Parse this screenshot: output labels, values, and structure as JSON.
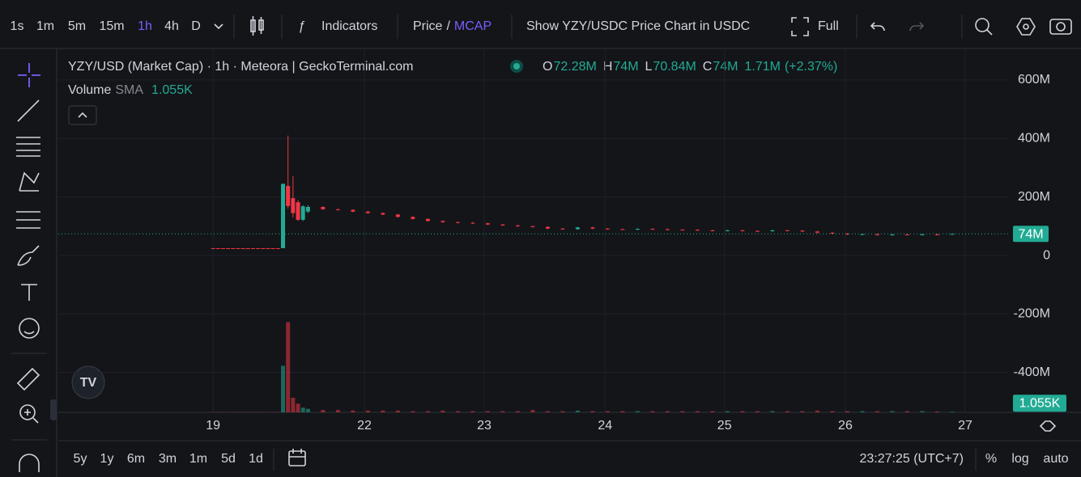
{
  "toolbar": {
    "intervals": [
      "1s",
      "1m",
      "5m",
      "15m",
      "1h",
      "4h",
      "D"
    ],
    "active_interval": 4,
    "indicators": "Indicators",
    "price": "Price",
    "slash": "/",
    "mcap": "MCAP",
    "usdc": "Show YZY/USDC Price Chart in USDC",
    "full": "Full"
  },
  "legend": {
    "title": "YZY/USD (Market Cap) · 1h · Meteora | GeckoTerminal.com",
    "ohlc": [
      {
        "key": "O",
        "value": "72.28M"
      },
      {
        "key": "H",
        "value": "74M"
      },
      {
        "key": "L",
        "value": "70.84M"
      },
      {
        "key": "C",
        "value": "74M"
      }
    ],
    "change": "1.71M",
    "change_pct": "(+2.37%)"
  },
  "volume_legend": {
    "label": "Volume",
    "sma": "SMA",
    "value": "1.055K"
  },
  "chart_data": {
    "type": "candlestick",
    "up_color": "#22ab94",
    "down_color": "#f23645",
    "grid": true,
    "xlim": [
      -31,
      159.2
    ],
    "xticks": [
      {
        "value": 0,
        "label": "19"
      },
      {
        "value": 30.3,
        "label": "22"
      },
      {
        "value": 54.3,
        "label": "23"
      },
      {
        "value": 78.5,
        "label": "24"
      },
      {
        "value": 102.4,
        "label": "25"
      },
      {
        "value": 126.6,
        "label": "26"
      },
      {
        "value": 150.6,
        "label": "27"
      }
    ],
    "ylim": [
      -536,
      702
    ],
    "yticks": [
      {
        "value": 600,
        "label": "600M"
      },
      {
        "value": 400,
        "label": "400M"
      },
      {
        "value": 200,
        "label": "200M"
      },
      0,
      {
        "value": -200,
        "label": "-200M"
      },
      {
        "value": -400,
        "label": "-400M"
      }
    ],
    "vlim": [
      0,
      250
    ],
    "x": [
      0,
      1,
      2,
      3,
      4,
      5,
      6,
      7,
      8,
      9,
      10,
      11,
      12,
      13,
      14,
      15,
      16,
      17,
      18,
      19,
      22,
      25,
      28,
      31,
      34,
      37,
      40,
      43,
      46,
      49,
      52,
      55,
      58,
      61,
      64,
      67,
      70,
      73,
      76,
      79,
      82,
      85,
      88,
      91,
      94,
      97,
      100,
      103,
      106,
      109,
      112,
      115,
      118,
      121,
      124,
      127,
      130,
      133,
      136,
      139,
      142,
      145,
      148
    ],
    "open": [
      25,
      25,
      25,
      25,
      25,
      25,
      25,
      25,
      25,
      25,
      25,
      25,
      25,
      25,
      25,
      238,
      196,
      182,
      122,
      150,
      166,
      158,
      156,
      150,
      145,
      140,
      132,
      125,
      118,
      114,
      112,
      110,
      106,
      103,
      100,
      98,
      92,
      90,
      96,
      92,
      90,
      89,
      91,
      90,
      88,
      88,
      86,
      85,
      86,
      84,
      83,
      86,
      85,
      82,
      78,
      75,
      72,
      73,
      70,
      72,
      71,
      72,
      72.28
    ],
    "high": [
      25,
      25,
      25,
      25,
      25,
      25,
      25,
      25,
      25,
      25,
      25,
      25,
      25,
      25,
      245,
      410,
      271,
      190,
      172,
      172,
      168,
      160,
      158,
      152,
      147,
      142,
      134,
      127,
      120,
      116,
      114,
      112,
      108,
      105,
      102,
      100,
      94,
      98,
      98,
      94,
      92,
      93,
      93,
      92,
      90,
      90,
      88,
      88,
      88,
      86,
      88,
      88,
      87,
      84,
      80,
      77,
      75,
      75,
      74,
      74,
      74,
      74,
      74
    ],
    "low": [
      25,
      25,
      25,
      25,
      25,
      25,
      25,
      25,
      25,
      25,
      25,
      25,
      25,
      25,
      25,
      160,
      130,
      118,
      118,
      145,
      156,
      154,
      148,
      143,
      138,
      130,
      123,
      116,
      112,
      110,
      108,
      104,
      101,
      98,
      96,
      90,
      88,
      88,
      90,
      88,
      87,
      87,
      88,
      86,
      86,
      84,
      83,
      83,
      82,
      81,
      81,
      83,
      80,
      76,
      73,
      70,
      70,
      68,
      68,
      69,
      69,
      69,
      70.84
    ],
    "close": [
      25,
      25,
      25,
      25,
      25,
      25,
      25,
      25,
      25,
      25,
      25,
      25,
      25,
      25,
      245,
      169,
      145,
      122,
      168,
      166,
      158,
      156,
      150,
      145,
      140,
      132,
      125,
      118,
      114,
      112,
      110,
      106,
      103,
      100,
      98,
      92,
      90,
      96,
      92,
      90,
      89,
      91,
      90,
      88,
      88,
      86,
      85,
      86,
      84,
      83,
      86,
      85,
      82,
      78,
      75,
      72,
      73,
      70,
      72,
      71,
      72,
      71,
      74
    ],
    "volume": [
      0.5,
      0.5,
      0.5,
      0.5,
      0.5,
      0.5,
      0.5,
      0.5,
      0.5,
      0.5,
      0.5,
      0.5,
      0.5,
      0.5,
      80,
      155,
      25,
      15,
      8,
      6,
      4,
      4,
      3,
      3,
      3,
      3,
      2,
      2,
      3,
      2,
      2,
      2,
      2,
      2,
      4,
      2,
      2,
      3,
      2,
      2,
      2,
      2,
      2,
      2,
      2,
      2,
      2,
      2,
      2,
      2,
      2,
      2,
      2,
      3,
      2,
      2,
      2,
      2,
      2,
      2,
      2,
      1.5,
      1.055
    ],
    "price_label": {
      "value": 74,
      "label": "74M"
    },
    "volume_label": {
      "value": 1.055,
      "label": "1.055K"
    }
  },
  "bottom_bar": {
    "ranges": [
      "5y",
      "1y",
      "6m",
      "3m",
      "1m",
      "5d",
      "1d"
    ],
    "time": "23:27:25 (UTC+7)",
    "scale_options": [
      "%",
      "log",
      "auto"
    ]
  }
}
